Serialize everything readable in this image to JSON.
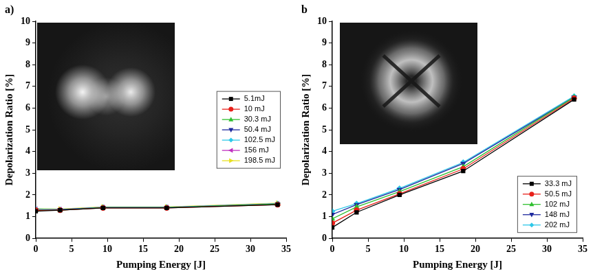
{
  "chart_data": [
    {
      "type": "line",
      "title": "a)",
      "x_label": "Pumping Energy [J]",
      "y_label": "Depolarization Ratio [%]",
      "x": [
        0,
        3.4,
        9.4,
        18.3,
        33.8
      ],
      "series": [
        {
          "name": "5.1mJ",
          "color": "#000000",
          "marker": "square",
          "values": [
            1.25,
            1.3,
            1.4,
            1.4,
            1.55
          ]
        },
        {
          "name": "10 mJ",
          "color": "#e8201a",
          "marker": "circle",
          "values": [
            1.3,
            1.3,
            1.4,
            1.4,
            1.55
          ]
        },
        {
          "name": "30.3 mJ",
          "color": "#2fbf2f",
          "marker": "triangle-up",
          "values": [
            1.3,
            1.3,
            1.42,
            1.42,
            1.58
          ]
        },
        {
          "name": "50.4 mJ",
          "color": "#1e2a9e",
          "marker": "triangle-down",
          "values": [
            1.3,
            1.32,
            1.42,
            1.42,
            1.58
          ]
        },
        {
          "name": "102.5 mJ",
          "color": "#2ec8e8",
          "marker": "diamond",
          "values": [
            1.35,
            1.33,
            1.43,
            1.43,
            1.6
          ]
        },
        {
          "name": "156 mJ",
          "color": "#c030c0",
          "marker": "triangle-left",
          "values": [
            1.35,
            1.33,
            1.43,
            1.43,
            1.6
          ]
        },
        {
          "name": "198.5 mJ",
          "color": "#e8e020",
          "marker": "triangle-right",
          "values": [
            1.37,
            1.35,
            1.45,
            1.45,
            1.62
          ]
        }
      ],
      "xlim": [
        0,
        35
      ],
      "xticks": [
        0,
        5,
        10,
        15,
        20,
        25,
        30,
        35
      ],
      "ylim": [
        0,
        10
      ],
      "yticks": [
        0,
        1,
        2,
        3,
        4,
        5,
        6,
        7,
        8,
        9,
        10
      ],
      "grid": false,
      "legend": "right"
    },
    {
      "type": "line",
      "title": "b",
      "x_label": "Pumping Energy [J]",
      "y_label": "Depolarization Ratio [%]",
      "x": [
        0,
        3.4,
        9.4,
        18.3,
        33.8
      ],
      "series": [
        {
          "name": "33.3 mJ",
          "color": "#000000",
          "marker": "square",
          "values": [
            0.5,
            1.2,
            2.0,
            3.1,
            6.4
          ]
        },
        {
          "name": "50.5 mJ",
          "color": "#e8201a",
          "marker": "circle",
          "values": [
            0.7,
            1.3,
            2.05,
            3.2,
            6.45
          ]
        },
        {
          "name": "102 mJ",
          "color": "#2fbf2f",
          "marker": "triangle-up",
          "values": [
            0.9,
            1.45,
            2.15,
            3.3,
            6.5
          ]
        },
        {
          "name": "148 mJ",
          "color": "#1e2a9e",
          "marker": "triangle-down",
          "values": [
            1.1,
            1.55,
            2.25,
            3.45,
            6.5
          ]
        },
        {
          "name": "202 mJ",
          "color": "#2ec8e8",
          "marker": "diamond",
          "values": [
            1.25,
            1.6,
            2.3,
            3.5,
            6.55
          ]
        }
      ],
      "xlim": [
        0,
        35
      ],
      "xticks": [
        0,
        5,
        10,
        15,
        20,
        25,
        30,
        35
      ],
      "ylim": [
        0,
        10
      ],
      "yticks": [
        0,
        1,
        2,
        3,
        4,
        5,
        6,
        7,
        8,
        9,
        10
      ],
      "grid": false,
      "legend": "lower right"
    }
  ]
}
